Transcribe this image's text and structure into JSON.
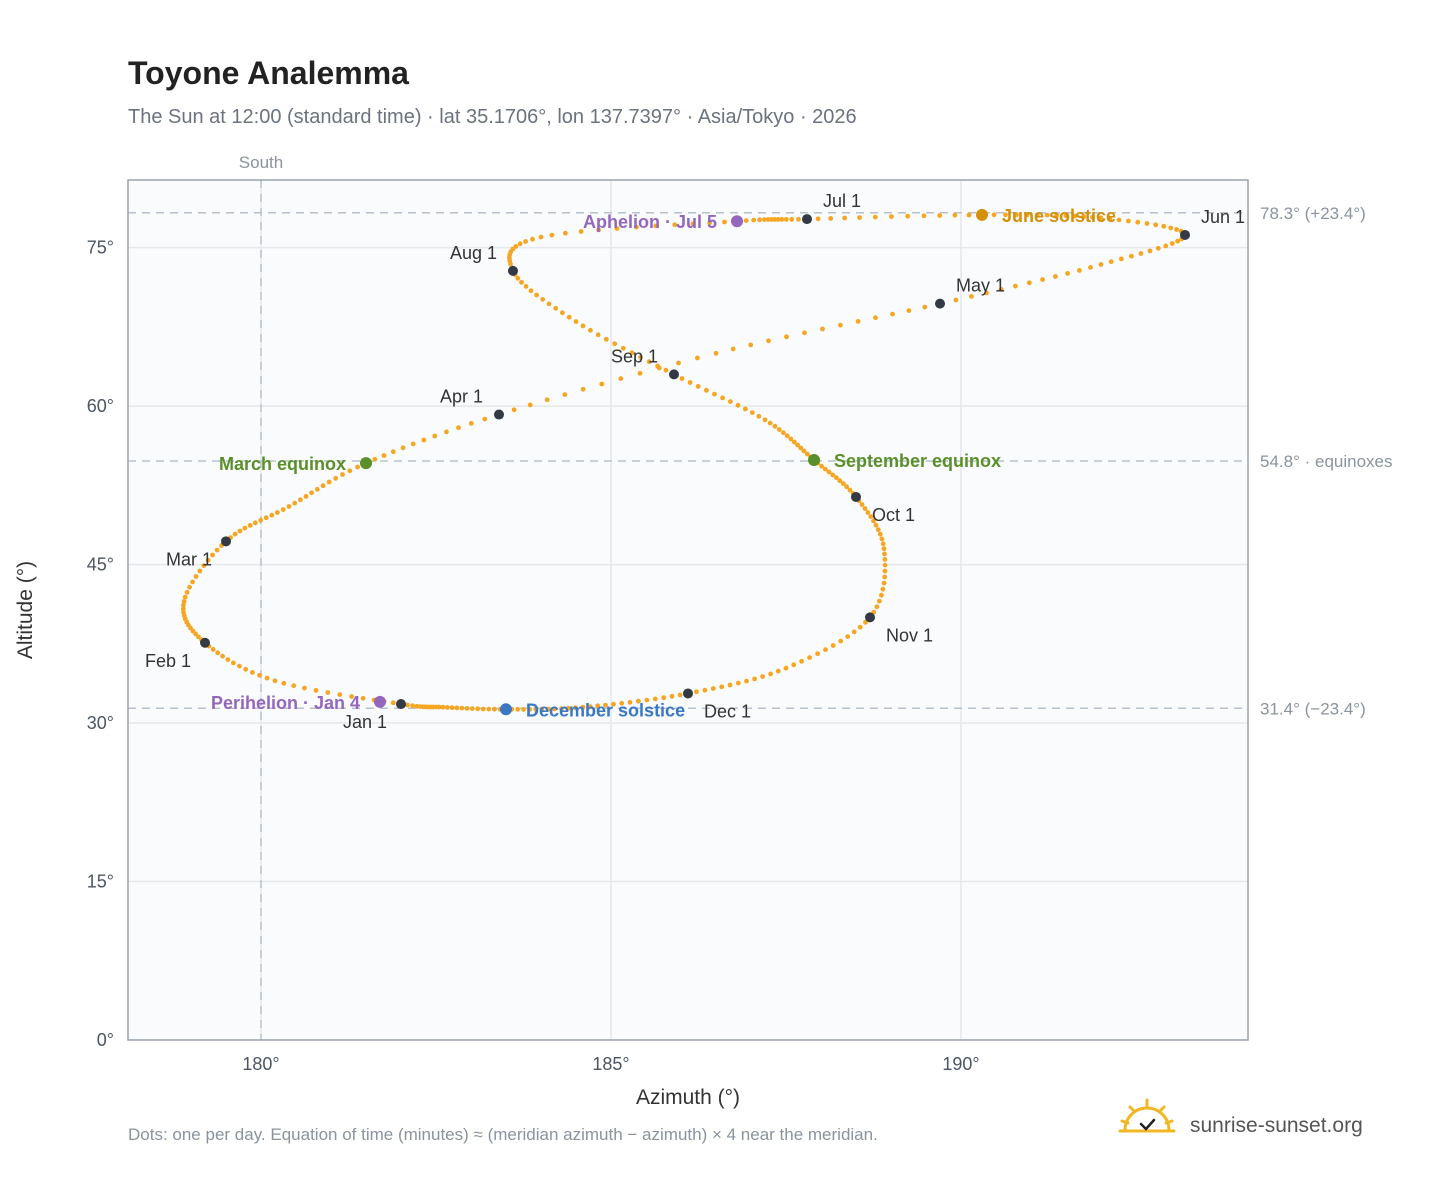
{
  "title": "Toyone Analemma",
  "subtitle": "The Sun at 12:00 (standard time) · lat 35.1706°, lon 137.7397° · Asia/Tokyo · 2026",
  "footnote": "Dots: one per day. Equation of time (minutes) ≈ (meridian azimuth − azimuth) × 4 near the meridian.",
  "brand": "sunrise-sunset.org",
  "chart_data": {
    "type": "scatter",
    "xlabel": "Azimuth (°)",
    "ylabel": "Altitude (°)",
    "xlim": [
      178.1,
      194.1
    ],
    "ylim": [
      0,
      81.4
    ],
    "xticks": [
      {
        "v": 180,
        "label": "180°"
      },
      {
        "v": 185,
        "label": "185°"
      },
      {
        "v": 190,
        "label": "190°"
      }
    ],
    "yticks": [
      {
        "v": 0,
        "label": "0°"
      },
      {
        "v": 15,
        "label": "15°"
      },
      {
        "v": 30,
        "label": "30°"
      },
      {
        "v": 45,
        "label": "45°"
      },
      {
        "v": 60,
        "label": "60°"
      },
      {
        "v": 75,
        "label": "75°"
      }
    ],
    "meridian": {
      "azimuth": 180,
      "label": "South"
    },
    "reference_lines": [
      {
        "altitude": 78.3,
        "label": "78.3° (+23.4°)"
      },
      {
        "altitude": 54.8,
        "label": "54.8° · equinoxes"
      },
      {
        "altitude": 31.4,
        "label": "31.4° (−23.4°)"
      }
    ],
    "curve": [
      {
        "az": 182.0,
        "alt": 31.8
      },
      {
        "az": 180.2,
        "alt": 34.0
      },
      {
        "az": 179.2,
        "alt": 37.6
      },
      {
        "az": 178.9,
        "alt": 41.5
      },
      {
        "az": 179.5,
        "alt": 47.2
      },
      {
        "az": 180.4,
        "alt": 50.5
      },
      {
        "az": 181.5,
        "alt": 54.6
      },
      {
        "az": 183.4,
        "alt": 59.2
      },
      {
        "az": 186.5,
        "alt": 65.0
      },
      {
        "az": 189.7,
        "alt": 69.7
      },
      {
        "az": 192.0,
        "alt": 73.4
      },
      {
        "az": 193.2,
        "alt": 76.2
      },
      {
        "az": 192.0,
        "alt": 77.8
      },
      {
        "az": 190.3,
        "alt": 78.1
      },
      {
        "az": 187.8,
        "alt": 77.7
      },
      {
        "az": 186.8,
        "alt": 77.5
      },
      {
        "az": 184.0,
        "alt": 76.0
      },
      {
        "az": 183.6,
        "alt": 72.8
      },
      {
        "az": 184.5,
        "alt": 68.0
      },
      {
        "az": 185.9,
        "alt": 63.0
      },
      {
        "az": 187.2,
        "alt": 58.7
      },
      {
        "az": 187.9,
        "alt": 54.9
      },
      {
        "az": 188.5,
        "alt": 51.4
      },
      {
        "az": 188.9,
        "alt": 46.5
      },
      {
        "az": 188.7,
        "alt": 40.0
      },
      {
        "az": 187.5,
        "alt": 35.2
      },
      {
        "az": 186.1,
        "alt": 32.8
      },
      {
        "az": 184.6,
        "alt": 31.5
      },
      {
        "az": 183.5,
        "alt": 31.3
      },
      {
        "az": 182.6,
        "alt": 31.5
      },
      {
        "az": 182.0,
        "alt": 31.8
      }
    ],
    "month_markers": [
      {
        "label": "Jan 1",
        "az": 182.0,
        "alt": 31.8,
        "pos": "below-left"
      },
      {
        "label": "Feb 1",
        "az": 179.2,
        "alt": 37.6,
        "pos": "below-left"
      },
      {
        "label": "Mar 1",
        "az": 179.5,
        "alt": 47.2,
        "pos": "below-left"
      },
      {
        "label": "Apr 1",
        "az": 183.4,
        "alt": 59.2,
        "pos": "above-left"
      },
      {
        "label": "May 1",
        "az": 189.7,
        "alt": 69.7,
        "pos": "above-right"
      },
      {
        "label": "Jun 1",
        "az": 193.2,
        "alt": 76.2,
        "pos": "above-right"
      },
      {
        "label": "Jul 1",
        "az": 187.8,
        "alt": 77.7,
        "pos": "above-right"
      },
      {
        "label": "Aug 1",
        "az": 183.6,
        "alt": 72.8,
        "pos": "above-left"
      },
      {
        "label": "Sep 1",
        "az": 185.9,
        "alt": 63.0,
        "pos": "above-left"
      },
      {
        "label": "Oct 1",
        "az": 188.5,
        "alt": 51.4,
        "pos": "below-right"
      },
      {
        "label": "Nov 1",
        "az": 188.7,
        "alt": 40.0,
        "pos": "below-right"
      },
      {
        "label": "Dec 1",
        "az": 186.1,
        "alt": 32.8,
        "pos": "below-right"
      }
    ],
    "events": [
      {
        "label": "June solstice",
        "az": 190.3,
        "alt": 78.1,
        "color": "#d4900a",
        "side": "right"
      },
      {
        "label": "Aphelion · Jul 5",
        "az": 186.8,
        "alt": 77.5,
        "color": "#9467bd",
        "side": "left"
      },
      {
        "label": "March equinox",
        "az": 181.5,
        "alt": 54.6,
        "color": "#5a8f29",
        "side": "left"
      },
      {
        "label": "September equinox",
        "az": 187.9,
        "alt": 54.9,
        "color": "#5a8f29",
        "side": "right"
      },
      {
        "label": "Perihelion · Jan 4",
        "az": 181.7,
        "alt": 32.0,
        "color": "#9467bd",
        "side": "left"
      },
      {
        "label": "December solstice",
        "az": 183.5,
        "alt": 31.3,
        "color": "#3a78c3",
        "side": "right"
      }
    ],
    "colors": {
      "curve": "#f5a623",
      "marker": "#333a45",
      "grid": "#e5e8ec",
      "plot_bg": "#f9fbfd",
      "frame": "#9aa3ad",
      "refline": "#b8c2cc"
    }
  }
}
